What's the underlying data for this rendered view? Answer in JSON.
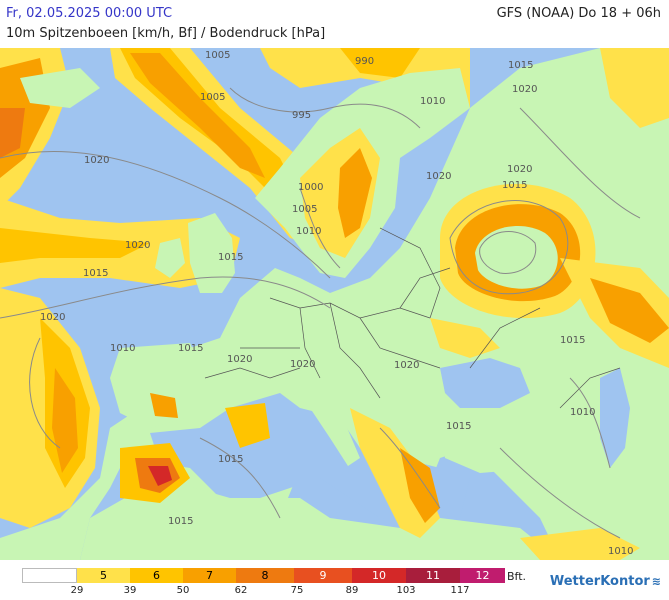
{
  "header": {
    "date": "Fr, 02.05.2025 00:00 UTC",
    "model": "GFS (NOAA) Do 18 + 06h",
    "parameter": "10m Spitzenboeen [km/h, Bf] / Bodendruck [hPa]"
  },
  "colors": {
    "sea": "#9fc4f0",
    "land": "#c8f5b4",
    "bft5": "#ffe14a",
    "bft6": "#ffc400",
    "bft7": "#f8a000",
    "bft8": "#ee7a10",
    "bft9": "#e85020",
    "bft10": "#d42828",
    "bft11": "#a81e3c",
    "bft12": "#c01c6e"
  },
  "isobar_labels": [
    "1005",
    "1005",
    "990",
    "995",
    "1015",
    "1010",
    "1020",
    "1020",
    "1020",
    "1020",
    "1000",
    "1005",
    "1010",
    "1020",
    "1015",
    "1020",
    "1015",
    "1015",
    "1010",
    "1015",
    "1020",
    "1020",
    "1020",
    "1015",
    "1015",
    "1015",
    "1010",
    "1015",
    "1010"
  ],
  "legend": {
    "swatches": [
      {
        "bft": "",
        "color": "#ffffff"
      },
      {
        "bft": "5",
        "color": "#ffe14a"
      },
      {
        "bft": "6",
        "color": "#ffc400"
      },
      {
        "bft": "7",
        "color": "#f8a000"
      },
      {
        "bft": "8",
        "color": "#ee7a10"
      },
      {
        "bft": "9",
        "color": "#e85020"
      },
      {
        "bft": "10",
        "color": "#d42828"
      },
      {
        "bft": "11",
        "color": "#a81e3c"
      },
      {
        "bft": "12",
        "color": "#c01c6e"
      }
    ],
    "kmh_ticks": [
      "29",
      "39",
      "50",
      "62",
      "75",
      "89",
      "103",
      "117"
    ],
    "unit": "Bft."
  },
  "brand": "WetterKontor"
}
